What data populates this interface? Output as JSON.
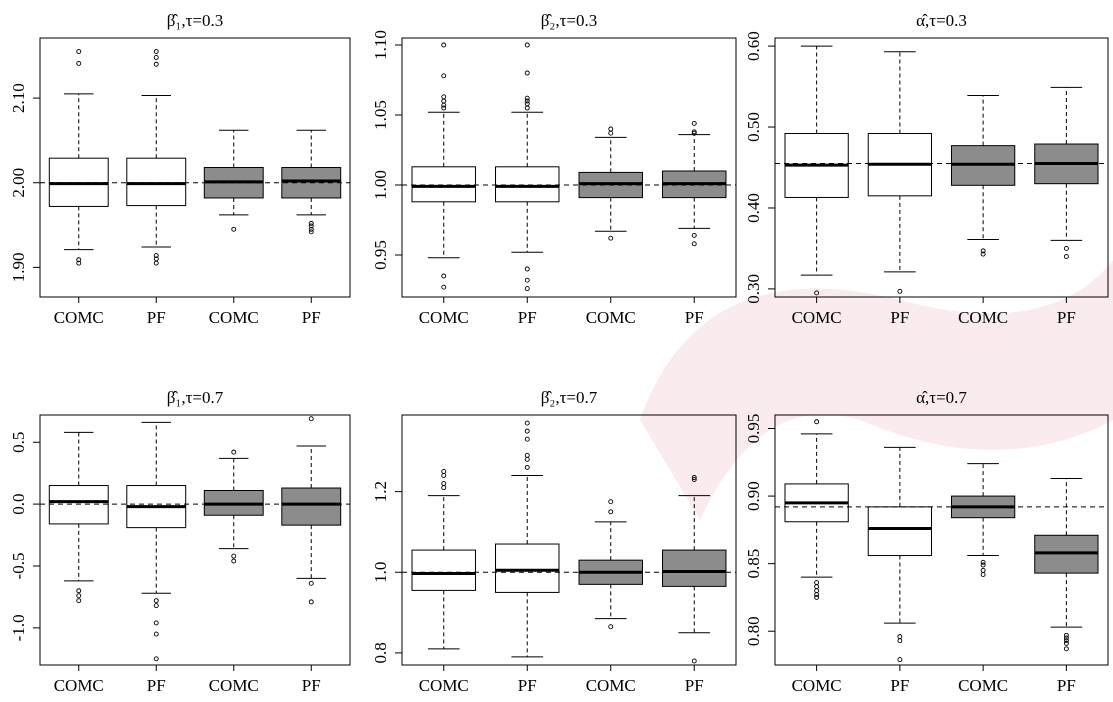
{
  "chart_data": [
    {
      "type": "box",
      "title": "β̂₁,τ=0.3",
      "categories": [
        "COMC",
        "PF",
        "COMC",
        "PF"
      ],
      "colors": [
        "#ffffff",
        "#ffffff",
        "#8c8c8c",
        "#8c8c8c"
      ],
      "boxes": [
        {
          "whislo": 1.921,
          "q1": 1.972,
          "med": 1.999,
          "q3": 2.029,
          "whishi": 2.105,
          "fliers": [
            2.155,
            2.141,
            1.909,
            1.905
          ]
        },
        {
          "whislo": 1.924,
          "q1": 1.973,
          "med": 1.999,
          "q3": 2.029,
          "whishi": 2.103,
          "fliers": [
            2.155,
            2.148,
            2.14,
            1.914,
            1.91,
            1.905
          ]
        },
        {
          "whislo": 1.962,
          "q1": 1.982,
          "med": 2.001,
          "q3": 2.018,
          "whishi": 2.062,
          "fliers": [
            1.945
          ]
        },
        {
          "whislo": 1.962,
          "q1": 1.982,
          "med": 2.002,
          "q3": 2.018,
          "whishi": 2.062,
          "fliers": [
            1.952,
            1.949,
            1.945,
            1.942
          ]
        }
      ],
      "reference_line": 2.0,
      "ylim": [
        1.865,
        2.171
      ],
      "yticks": [
        {
          "value": 1.9,
          "label": "1.90"
        },
        {
          "value": 2.0,
          "label": "2.00"
        },
        {
          "value": 2.1,
          "label": "2.10"
        }
      ]
    },
    {
      "type": "box",
      "title": "β̂₂,τ=0.3",
      "categories": [
        "COMC",
        "PF",
        "COMC",
        "PF"
      ],
      "colors": [
        "#ffffff",
        "#ffffff",
        "#8c8c8c",
        "#8c8c8c"
      ],
      "boxes": [
        {
          "whislo": 0.948,
          "q1": 0.988,
          "med": 0.999,
          "q3": 1.013,
          "whishi": 1.052,
          "fliers": [
            1.055,
            1.057,
            1.06,
            1.063,
            1.078,
            1.1,
            0.935,
            0.927
          ]
        },
        {
          "whislo": 0.952,
          "q1": 0.988,
          "med": 0.999,
          "q3": 1.013,
          "whishi": 1.052,
          "fliers": [
            1.055,
            1.058,
            1.06,
            1.062,
            1.08,
            1.1,
            0.94,
            0.932,
            0.926
          ]
        },
        {
          "whislo": 0.967,
          "q1": 0.991,
          "med": 1.001,
          "q3": 1.009,
          "whishi": 1.034,
          "fliers": [
            1.037,
            1.04,
            0.962
          ]
        },
        {
          "whislo": 0.969,
          "q1": 0.991,
          "med": 1.001,
          "q3": 1.01,
          "whishi": 1.036,
          "fliers": [
            1.037,
            1.038,
            1.044,
            0.964,
            0.958
          ]
        }
      ],
      "reference_line": 1.0,
      "ylim": [
        0.92,
        1.105
      ],
      "yticks": [
        0.95,
        {
          "value": 1.0,
          "label": "1.00"
        },
        1.05,
        {
          "value": 1.1,
          "label": "1.10"
        }
      ]
    },
    {
      "type": "box",
      "title": "α̂,τ=0.3",
      "categories": [
        "COMC",
        "PF",
        "COMC",
        "PF"
      ],
      "colors": [
        "#ffffff",
        "#ffffff",
        "#8c8c8c",
        "#8c8c8c"
      ],
      "boxes": [
        {
          "whislo": 0.317,
          "q1": 0.413,
          "med": 0.453,
          "q3": 0.492,
          "whishi": 0.6,
          "fliers": [
            0.295
          ]
        },
        {
          "whislo": 0.321,
          "q1": 0.415,
          "med": 0.454,
          "q3": 0.492,
          "whishi": 0.593,
          "fliers": [
            0.297
          ]
        },
        {
          "whislo": 0.361,
          "q1": 0.428,
          "med": 0.454,
          "q3": 0.477,
          "whishi": 0.539,
          "fliers": [
            0.347,
            0.343
          ]
        },
        {
          "whislo": 0.36,
          "q1": 0.43,
          "med": 0.455,
          "q3": 0.479,
          "whishi": 0.549,
          "fliers": [
            0.35,
            0.34
          ]
        }
      ],
      "reference_line": 0.455,
      "ylim": [
        0.29,
        0.61
      ],
      "yticks": [
        {
          "value": 0.3,
          "label": "0.30"
        },
        {
          "value": 0.4,
          "label": "0.40"
        },
        {
          "value": 0.5,
          "label": "0.50"
        },
        {
          "value": 0.6,
          "label": "0.60"
        }
      ]
    },
    {
      "type": "box",
      "title": "β̂₁,τ=0.7",
      "categories": [
        "COMC",
        "PF",
        "COMC",
        "PF"
      ],
      "colors": [
        "#ffffff",
        "#ffffff",
        "#8c8c8c",
        "#8c8c8c"
      ],
      "boxes": [
        {
          "whislo": -0.62,
          "q1": -0.16,
          "med": 0.02,
          "q3": 0.15,
          "whishi": 0.58,
          "fliers": [
            -0.7,
            -0.74,
            -0.78
          ]
        },
        {
          "whislo": -0.72,
          "q1": -0.19,
          "med": -0.02,
          "q3": 0.15,
          "whishi": 0.66,
          "fliers": [
            -0.78,
            -0.82,
            -0.96,
            -1.05,
            -1.25
          ]
        },
        {
          "whislo": -0.36,
          "q1": -0.09,
          "med": 0.0,
          "q3": 0.11,
          "whishi": 0.37,
          "fliers": [
            0.42,
            -0.42,
            -0.46
          ]
        },
        {
          "whislo": -0.6,
          "q1": -0.17,
          "med": 0.0,
          "q3": 0.13,
          "whishi": 0.47,
          "fliers": [
            0.69,
            -0.64,
            -0.79
          ]
        }
      ],
      "reference_line": 0,
      "ylim": [
        -1.3,
        0.72
      ],
      "yticks": [
        {
          "value": -1.0,
          "label": "-1.0"
        },
        -0.5,
        {
          "value": 0.0,
          "label": "0.0"
        },
        0.5
      ]
    },
    {
      "type": "box",
      "title": "β̂₂,τ=0.7",
      "categories": [
        "COMC",
        "PF",
        "COMC",
        "PF"
      ],
      "colors": [
        "#ffffff",
        "#ffffff",
        "#8c8c8c",
        "#8c8c8c"
      ],
      "boxes": [
        {
          "whislo": 0.81,
          "q1": 0.955,
          "med": 0.997,
          "q3": 1.055,
          "whishi": 1.19,
          "fliers": [
            1.21,
            1.22,
            1.24,
            1.25
          ]
        },
        {
          "whislo": 0.79,
          "q1": 0.95,
          "med": 1.005,
          "q3": 1.07,
          "whishi": 1.24,
          "fliers": [
            1.26,
            1.28,
            1.29,
            1.33,
            1.35,
            1.37
          ]
        },
        {
          "whislo": 0.885,
          "q1": 0.97,
          "med": 1.0,
          "q3": 1.03,
          "whishi": 1.125,
          "fliers": [
            1.15,
            1.175,
            0.865
          ]
        },
        {
          "whislo": 0.85,
          "q1": 0.965,
          "med": 1.002,
          "q3": 1.055,
          "whishi": 1.19,
          "fliers": [
            1.23,
            1.235,
            0.78
          ]
        }
      ],
      "reference_line": 1.0,
      "ylim": [
        0.77,
        1.39
      ],
      "yticks": [
        0.8,
        {
          "value": 1.0,
          "label": "1.0"
        },
        1.2
      ]
    },
    {
      "type": "box",
      "title": "α̂,τ=0.7",
      "categories": [
        "COMC",
        "PF",
        "COMC",
        "PF"
      ],
      "colors": [
        "#ffffff",
        "#ffffff",
        "#8c8c8c",
        "#8c8c8c"
      ],
      "boxes": [
        {
          "whislo": 0.84,
          "q1": 0.881,
          "med": 0.895,
          "q3": 0.909,
          "whishi": 0.946,
          "fliers": [
            0.955,
            0.836,
            0.833,
            0.83,
            0.827,
            0.825
          ]
        },
        {
          "whislo": 0.806,
          "q1": 0.856,
          "med": 0.876,
          "q3": 0.892,
          "whishi": 0.936,
          "fliers": [
            0.796,
            0.793,
            0.779
          ]
        },
        {
          "whislo": 0.856,
          "q1": 0.884,
          "med": 0.892,
          "q3": 0.9,
          "whishi": 0.924,
          "fliers": [
            0.851,
            0.849,
            0.845,
            0.842
          ]
        },
        {
          "whislo": 0.803,
          "q1": 0.843,
          "med": 0.858,
          "q3": 0.871,
          "whishi": 0.913,
          "fliers": [
            0.797,
            0.795,
            0.793,
            0.791,
            0.787
          ]
        }
      ],
      "reference_line": 0.892,
      "ylim": [
        0.775,
        0.96
      ],
      "yticks": [
        {
          "value": 0.8,
          "label": "0.80"
        },
        0.85,
        {
          "value": 0.9,
          "label": "0.90"
        },
        0.95
      ]
    }
  ]
}
